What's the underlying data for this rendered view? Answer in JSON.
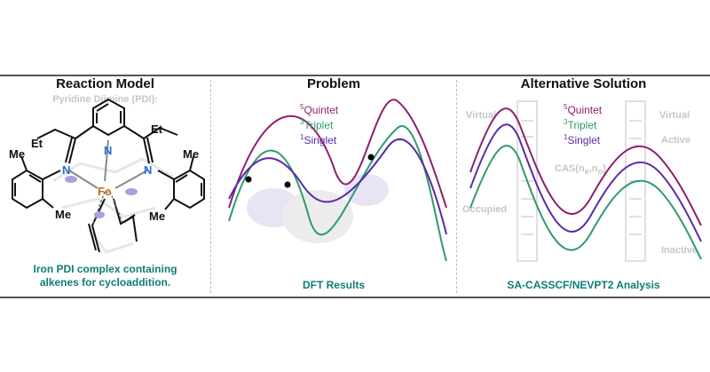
{
  "panels": {
    "reaction": {
      "title": "Reaction Model",
      "subtitle": "Pyridine Diimine (PDI):",
      "caption_line1": "Iron PDI complex containing",
      "caption_line2": "alkenes for cycloaddition.",
      "atoms": {
        "et_left": "Et",
        "et_right": "Et",
        "me1": "Me",
        "me2": "Me",
        "me3": "Me",
        "me4": "Me",
        "n_left": "N",
        "n_center": "N",
        "n_right": "N",
        "fe": "Fe"
      }
    },
    "problem": {
      "title": "Problem",
      "caption": "DFT Results"
    },
    "alternative": {
      "title": "Alternative Solution",
      "caption": "SA-CASSCF/NEVPT2 Analysis",
      "bg_labels": {
        "virtual_left": "Virtual",
        "virtual_right": "Virtual",
        "active": "Active",
        "occupied": "Occupied",
        "inactive": "Inactive",
        "cas": "CAS(n",
        "cas_sub1": "e",
        "cas_mid": ",n",
        "cas_sub2": "o",
        "cas_end": ")"
      }
    }
  },
  "legend": {
    "quintet": {
      "sup": "5",
      "label": "Quintet"
    },
    "triplet": {
      "sup": "3",
      "label": "Triplet"
    },
    "singlet": {
      "sup": "1",
      "label": "Singlet"
    }
  },
  "colors": {
    "quintet": "#8e1e6e",
    "triplet": "#2f9a6b",
    "singlet": "#5a2aa8",
    "teal": "#0e7c7b",
    "nitrogen": "#1f6fd0",
    "iron": "#c56a1a"
  }
}
